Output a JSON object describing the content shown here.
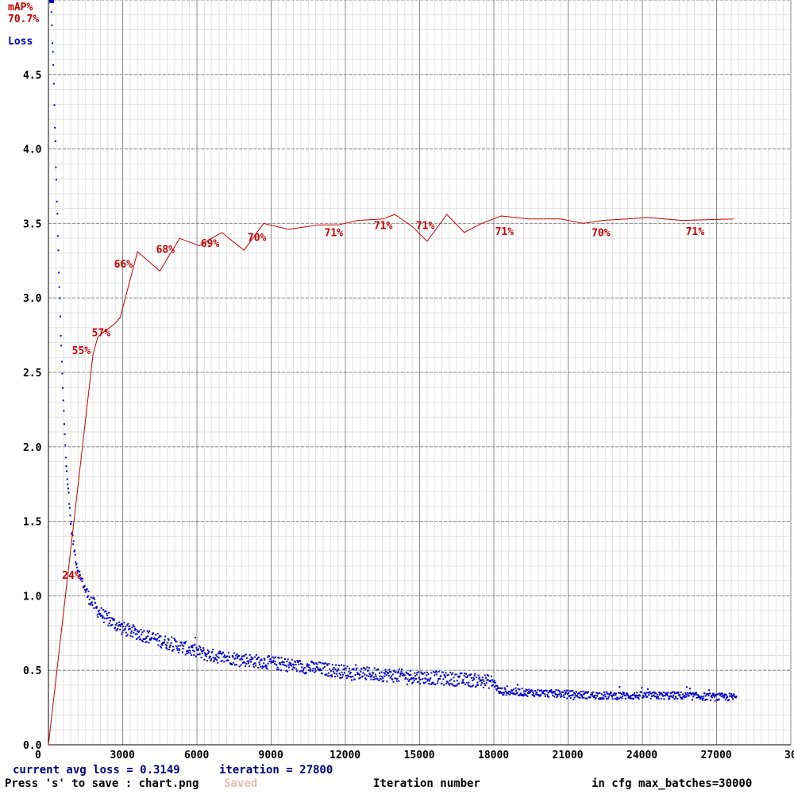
{
  "chart_data": {
    "type": "line",
    "xlim": [
      0,
      30000
    ],
    "ylim": [
      0,
      5
    ],
    "x_ticks": [
      "0",
      "3000",
      "6000",
      "9000",
      "12000",
      "15000",
      "18000",
      "21000",
      "24000",
      "27000",
      "30"
    ],
    "y_ticks": [
      "0.0",
      "0.5",
      "1.0",
      "1.5",
      "2.0",
      "2.5",
      "3.0",
      "3.5",
      "4.0",
      "4.5"
    ],
    "grid": true,
    "map_axis_label": "mAP%",
    "map_current": "70.7%",
    "loss_axis_label": "Loss",
    "xlabel": "Iteration number",
    "series": [
      {
        "name": "mAP%",
        "color": "#c80000",
        "x": [
          0,
          1800,
          2000,
          2700,
          2900,
          3600,
          4500,
          5300,
          6100,
          7000,
          7900,
          8700,
          9700,
          10900,
          11700,
          12500,
          13500,
          14000,
          14700,
          15300,
          16100,
          16800,
          17500,
          18300,
          19400,
          20700,
          21600,
          22400,
          23400,
          24200,
          25600,
          27700
        ],
        "y": [
          0,
          2.62,
          2.74,
          2.83,
          2.87,
          3.31,
          3.18,
          3.4,
          3.35,
          3.44,
          3.32,
          3.5,
          3.46,
          3.49,
          3.49,
          3.52,
          3.53,
          3.56,
          3.48,
          3.38,
          3.56,
          3.44,
          3.5,
          3.55,
          3.53,
          3.53,
          3.5,
          3.52,
          3.53,
          3.54,
          3.52,
          3.53
        ]
      },
      {
        "name": "Loss",
        "color": "#0000c8",
        "x": [
          100,
          200,
          300,
          400,
          500,
          600,
          700,
          800,
          900,
          1000,
          1100,
          1200,
          1400,
          1600,
          1800,
          2000,
          2400,
          3000,
          3600,
          4500,
          5500,
          6500,
          7500,
          8500,
          9500,
          10500,
          11500,
          12500,
          13500,
          14500,
          15500,
          16500,
          17500,
          18000,
          18200,
          19500,
          21000,
          22500,
          24000,
          25500,
          27000,
          27800
        ],
        "y": [
          5.0,
          4.55,
          3.9,
          3.3,
          2.75,
          2.3,
          1.95,
          1.7,
          1.5,
          1.36,
          1.25,
          1.17,
          1.08,
          1.0,
          0.95,
          0.9,
          0.84,
          0.78,
          0.75,
          0.7,
          0.65,
          0.6,
          0.58,
          0.56,
          0.54,
          0.52,
          0.5,
          0.48,
          0.47,
          0.46,
          0.45,
          0.44,
          0.43,
          0.42,
          0.36,
          0.35,
          0.34,
          0.33,
          0.33,
          0.33,
          0.32,
          0.32
        ]
      }
    ],
    "map_annotations": [
      {
        "x": 1000,
        "y": 1.14,
        "text": "24%"
      },
      {
        "x": 1400,
        "y": 2.65,
        "text": "55%"
      },
      {
        "x": 2200,
        "y": 2.77,
        "text": "57%"
      },
      {
        "x": 3100,
        "y": 3.23,
        "text": "66%"
      },
      {
        "x": 4800,
        "y": 3.33,
        "text": "68%"
      },
      {
        "x": 6600,
        "y": 3.37,
        "text": "69%"
      },
      {
        "x": 8500,
        "y": 3.41,
        "text": "70%"
      },
      {
        "x": 11600,
        "y": 3.44,
        "text": "71%"
      },
      {
        "x": 13600,
        "y": 3.49,
        "text": "71%"
      },
      {
        "x": 15300,
        "y": 3.49,
        "text": "71%"
      },
      {
        "x": 18500,
        "y": 3.45,
        "text": "71%"
      },
      {
        "x": 22400,
        "y": 3.44,
        "text": "70%"
      },
      {
        "x": 26200,
        "y": 3.45,
        "text": "71%"
      }
    ]
  },
  "footer": {
    "current_loss": "current avg loss = 0.3149",
    "iteration": "iteration = 27800",
    "save_hint": "Press 's' to save : chart.png",
    "saved_status": "Saved",
    "max_batches": "in cfg max_batches=30000"
  }
}
